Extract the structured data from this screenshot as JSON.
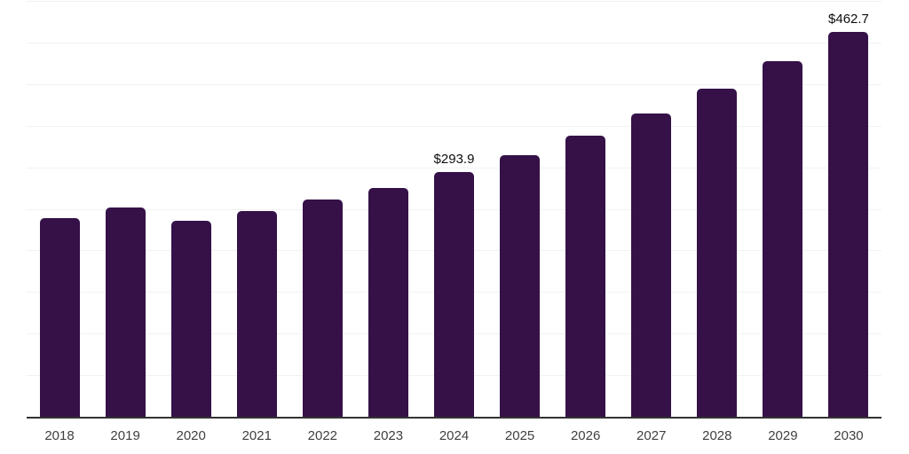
{
  "chart_data": {
    "type": "bar",
    "title": "",
    "xlabel": "",
    "ylabel": "",
    "categories": [
      "2018",
      "2019",
      "2020",
      "2021",
      "2022",
      "2023",
      "2024",
      "2025",
      "2026",
      "2027",
      "2028",
      "2029",
      "2030"
    ],
    "values": [
      239,
      252,
      236,
      247,
      261,
      275,
      293.9,
      314,
      338,
      365,
      395,
      428,
      462.7
    ],
    "bar_labels": [
      "",
      "",
      "",
      "",
      "",
      "",
      "$293.9",
      "",
      "",
      "",
      "",
      "",
      "$462.7"
    ],
    "ylim": [
      0,
      500
    ],
    "gridline_step": 50,
    "grid": "horizontal",
    "legend_position": "none",
    "y_tick_labels_visible": false,
    "colors": {
      "bar": "#351148",
      "gridline": "#f2f2f2",
      "axis_line": "#333333",
      "x_label_text": "#404040",
      "value_label_text": "#0d0d0d",
      "background": "#ffffff"
    }
  }
}
